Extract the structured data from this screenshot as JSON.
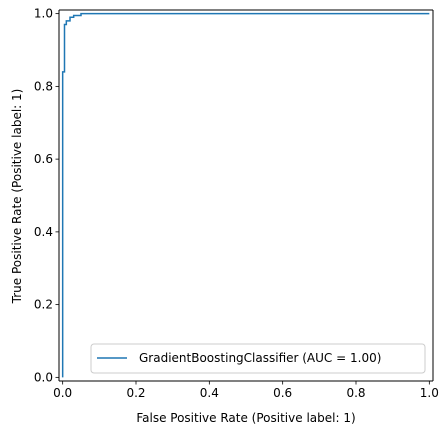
{
  "chart_data": {
    "type": "line",
    "title": "",
    "xlabel": "False Positive Rate (Positive label: 1)",
    "ylabel": "True Positive Rate (Positive label: 1)",
    "xlim": [
      -0.01,
      1.01
    ],
    "ylim": [
      -0.01,
      1.01
    ],
    "xticks": [
      0.0,
      0.2,
      0.4,
      0.6,
      0.8,
      1.0
    ],
    "yticks": [
      0.0,
      0.2,
      0.4,
      0.6,
      0.8,
      1.0
    ],
    "xtick_labels": [
      "0.0",
      "0.2",
      "0.4",
      "0.6",
      "0.8",
      "1.0"
    ],
    "ytick_labels": [
      "0.0",
      "0.2",
      "0.4",
      "0.6",
      "0.8",
      "1.0"
    ],
    "grid": false,
    "legend_position": "lower-right",
    "series": [
      {
        "name": "GradientBoostingClassifier (AUC = 1.00)",
        "color": "#1f77b4",
        "x": [
          0.0,
          0.0,
          0.0,
          0.005,
          0.005,
          0.01,
          0.01,
          0.02,
          0.02,
          0.03,
          0.03,
          0.05,
          0.05,
          1.0
        ],
        "y": [
          0.0,
          0.84,
          0.84,
          0.84,
          0.97,
          0.97,
          0.98,
          0.98,
          0.99,
          0.99,
          0.995,
          0.995,
          1.0,
          1.0
        ]
      }
    ]
  }
}
